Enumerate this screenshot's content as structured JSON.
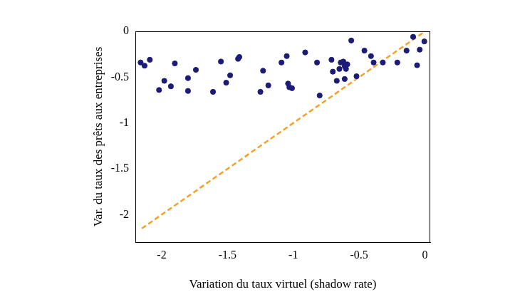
{
  "chart_data": {
    "type": "scatter",
    "x_label": "Variation du taux virtuel (shadow rate)",
    "y_label": "Var. du taux des prêts aux entreprises",
    "xlim": [
      -2.2,
      0.04
    ],
    "ylim": [
      -2.3,
      0
    ],
    "xticks": [
      -2,
      -1.5,
      -1,
      -0.5,
      0
    ],
    "yticks": [
      -2,
      -1.5,
      -1,
      -0.5,
      0
    ],
    "grid": false,
    "series": [
      {
        "type": "scatter",
        "color": "#1c1c78",
        "marker": "circle",
        "x": [
          -2.16,
          -2.13,
          -2.09,
          -2.02,
          -1.98,
          -1.93,
          -1.9,
          -1.8,
          -1.8,
          -1.74,
          -1.61,
          -1.55,
          -1.51,
          -1.48,
          -1.42,
          -1.41,
          -1.25,
          -1.23,
          -1.19,
          -1.09,
          -1.05,
          -1.04,
          -1.03,
          -1.01,
          -0.91,
          -0.82,
          -0.8,
          -0.71,
          -0.7,
          -0.67,
          -0.65,
          -0.64,
          -0.62,
          -0.61,
          -0.61,
          -0.59,
          -0.6,
          -0.56,
          -0.52,
          -0.46,
          -0.41,
          -0.39,
          -0.32,
          -0.21,
          -0.14,
          -0.09,
          -0.06,
          -0.04,
          -0.005
        ],
        "values": [
          -0.34,
          -0.375,
          -0.31,
          -0.64,
          -0.54,
          -0.6,
          -0.35,
          -0.51,
          -0.65,
          -0.42,
          -0.66,
          -0.33,
          -0.56,
          -0.48,
          -0.3,
          -0.28,
          -0.66,
          -0.43,
          -0.59,
          -0.34,
          -0.27,
          -0.57,
          -0.61,
          -0.62,
          -0.23,
          -0.34,
          -0.7,
          -0.31,
          -0.44,
          -0.54,
          -0.41,
          -0.34,
          -0.33,
          -0.38,
          -0.52,
          -0.36,
          -0.41,
          -0.1,
          -0.49,
          -0.21,
          -0.27,
          -0.34,
          -0.34,
          -0.34,
          -0.21,
          -0.06,
          -0.37,
          -0.2,
          -0.11
        ]
      },
      {
        "type": "line",
        "color": "#f5a028",
        "line_style": "dashed",
        "x": [
          -2.15,
          0
        ],
        "values": [
          -2.15,
          0
        ]
      }
    ]
  }
}
